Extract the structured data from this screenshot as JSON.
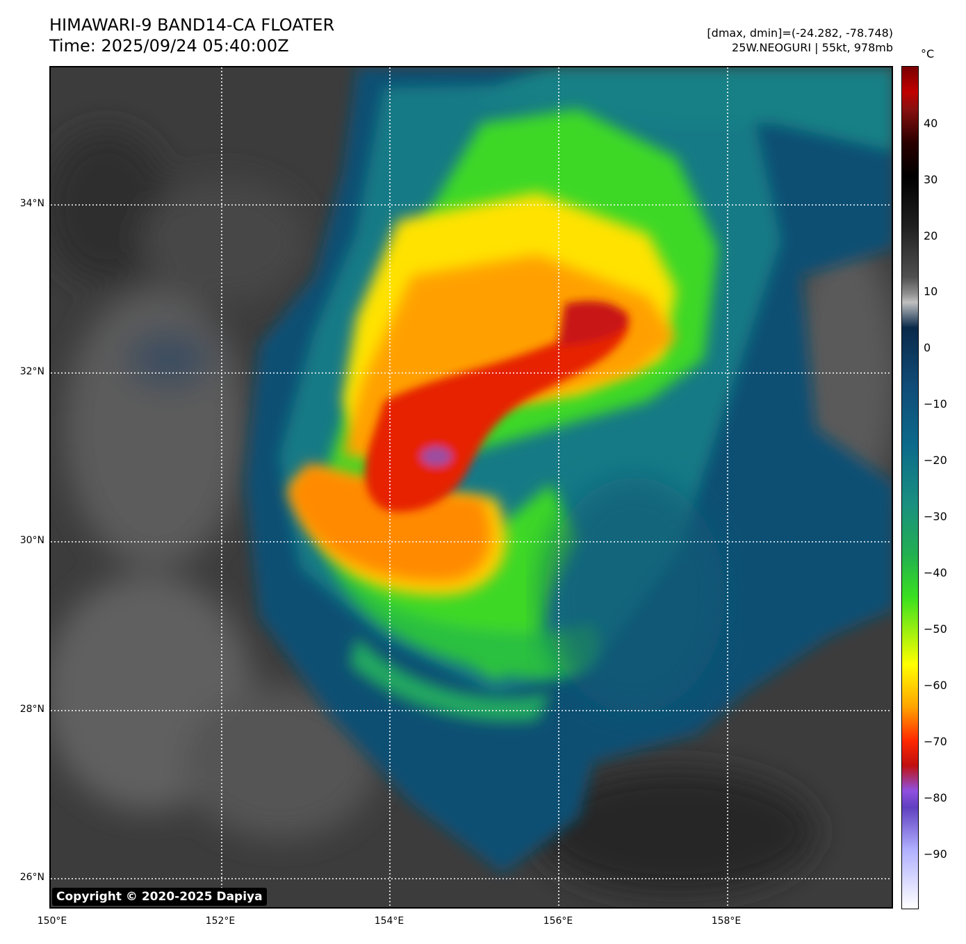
{
  "header": {
    "title_line1": "HIMAWARI-9 BAND14-CA FLOATER",
    "title_line2": "Time: 2025/09/24 05:40:00Z",
    "info_line1": "[dmax, dmin]=(-24.282, -78.748)",
    "info_line2": "25W.NEOGURI | 55kt, 978mb"
  },
  "map": {
    "copyright": "Copyright © 2020-2025 Dapiya",
    "lat_ticks": [
      "34°N",
      "32°N",
      "30°N",
      "28°N",
      "26°N"
    ],
    "lon_ticks": [
      "150°E",
      "152°E",
      "154°E",
      "156°E",
      "158°E"
    ],
    "storm_name": "25W.NEOGURI"
  },
  "colorbar": {
    "unit": "°C",
    "ticks": [
      "40",
      "30",
      "20",
      "10",
      "0",
      "−10",
      "−20",
      "−30",
      "−40",
      "−50",
      "−60",
      "−70",
      "−80",
      "−90"
    ]
  }
}
